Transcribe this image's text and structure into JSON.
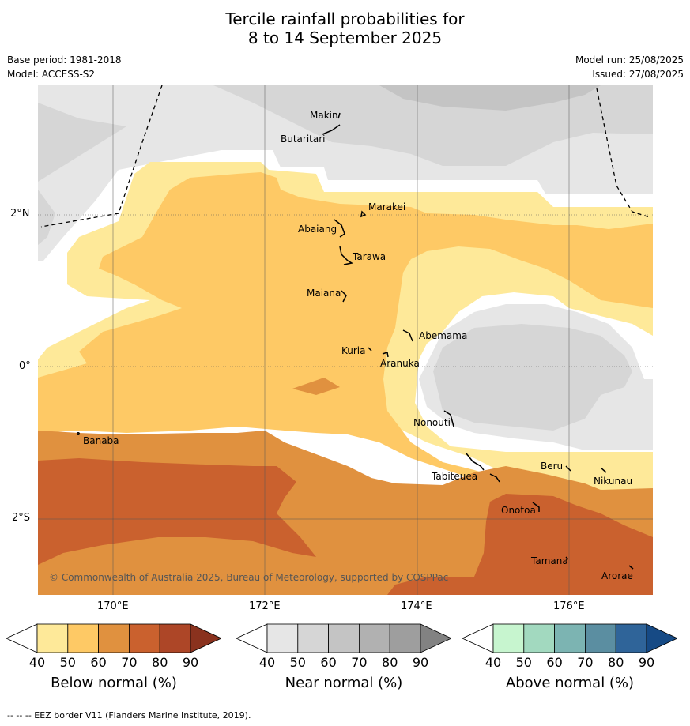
{
  "title_line1": "Tercile rainfall probabilities for",
  "title_line2": "8 to 14 September 2025",
  "meta": {
    "base_period": "Base period: 1981-2018",
    "model": "Model: ACCESS-S2",
    "model_run": "Model run: 25/08/2025",
    "issued": "Issued: 27/08/2025"
  },
  "map": {
    "lat_labels": [
      "2°N",
      "0°",
      "2°S"
    ],
    "lon_labels": [
      "170°E",
      "172°E",
      "174°E",
      "176°E"
    ],
    "places": [
      "Makin",
      "Butaritari",
      "Marakei",
      "Abaiang",
      "Tarawa",
      "Maiana",
      "Abemama",
      "Kuria",
      "Aranuka",
      "Nonouti",
      "Banaba",
      "Tabiteuea",
      "Beru",
      "Nikunau",
      "Onotoa",
      "Tamana",
      "Arorae"
    ],
    "copyright": "© Commonwealth of Australia 2025, Bureau of Meteorology, supported by COSPPac"
  },
  "colorbars": [
    {
      "label": "Below normal (%)",
      "ticks": [
        "40",
        "50",
        "60",
        "70",
        "80",
        "90"
      ],
      "colors": [
        "#ffffff",
        "#fee999",
        "#fec965",
        "#e0913f",
        "#ca612e",
        "#ad4627",
        "#8a321e"
      ]
    },
    {
      "label": "Near normal (%)",
      "ticks": [
        "40",
        "50",
        "60",
        "70",
        "80",
        "90"
      ],
      "colors": [
        "#ffffff",
        "#e6e6e6",
        "#d6d6d6",
        "#c4c4c4",
        "#b1b1b1",
        "#9e9e9e",
        "#828282"
      ]
    },
    {
      "label": "Above normal (%)",
      "ticks": [
        "40",
        "50",
        "60",
        "70",
        "80",
        "90"
      ],
      "colors": [
        "#ffffff",
        "#c7f5cf",
        "#a2d9bf",
        "#7cb4b2",
        "#5b8ea1",
        "#2f6499",
        "#164a85"
      ]
    }
  ],
  "footnote": "--  --  -- EEZ border V11 (Flanders Marine Institute, 2019)."
}
